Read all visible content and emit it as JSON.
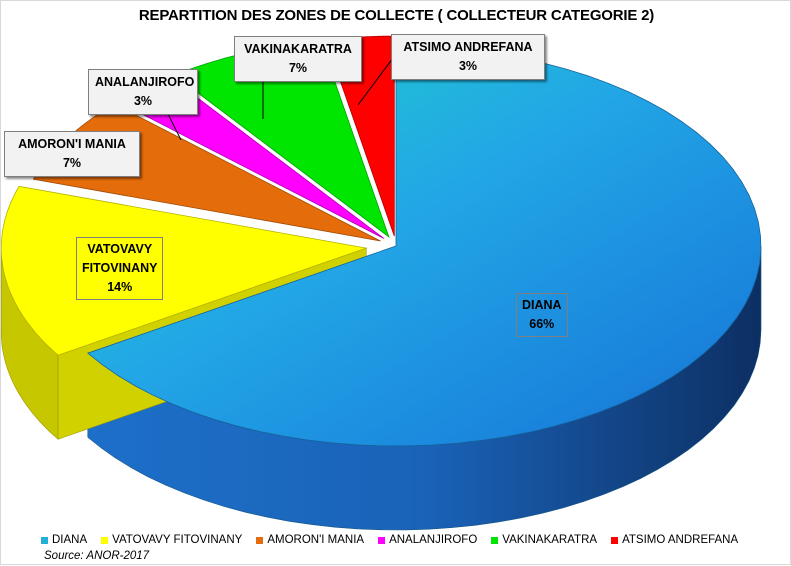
{
  "chart_data": {
    "type": "pie",
    "title": "REPARTITION DES ZONES DE  COLLECTE ( COLLECTEUR CATEGORIE 2)",
    "categories": [
      "DIANA",
      "VATOVAVY FITOVINANY",
      "AMORON'I MANIA",
      "ANALANJIROFO",
      "VAKINAKARATRA",
      "ATSIMO ANDREFANA"
    ],
    "values": [
      66,
      14,
      7,
      3,
      7,
      3
    ],
    "value_labels": [
      "66%",
      "14%",
      "7%",
      "3%",
      "7%",
      "3%"
    ],
    "slice_label_lines": [
      [
        "DIANA",
        "66%"
      ],
      [
        "VATOVAVY",
        "FITOVINANY",
        "14%"
      ],
      [
        "AMORON'I MANIA",
        "7%"
      ],
      [
        "ANALANJIROFO",
        "3%"
      ],
      [
        "VAKINAKARATRA",
        "7%"
      ],
      [
        "ATSIMO ANDREFANA",
        "3%"
      ]
    ],
    "colors": [
      "#1e8fe0",
      "#ffff00",
      "#e46c0a",
      "#ff00ff",
      "#00e600",
      "#ff0000"
    ],
    "style": "3d-exploded",
    "legend_position": "bottom"
  },
  "source": "Source: ANOR-2017"
}
